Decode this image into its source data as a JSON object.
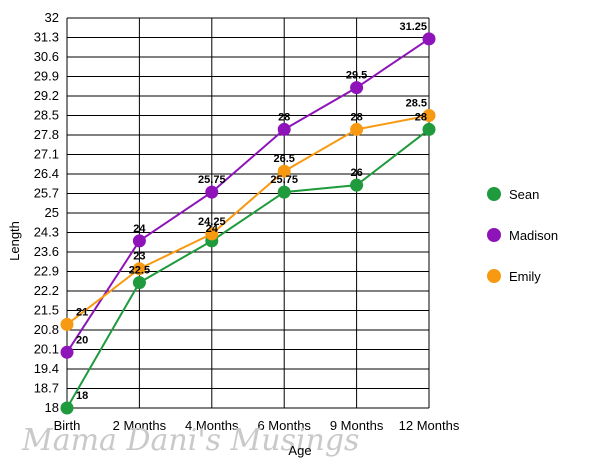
{
  "chart_data": {
    "type": "line",
    "title": "",
    "xlabel": "Age",
    "ylabel": "Length",
    "categories": [
      "Birth",
      "2 Months",
      "4 Months",
      "6 Months",
      "9 Months",
      "12 Months"
    ],
    "y_ticks": [
      "18",
      "18.7",
      "19.4",
      "20.1",
      "20.8",
      "21.5",
      "22.2",
      "22.9",
      "23.6",
      "24.3",
      "25",
      "25.7",
      "26.4",
      "27.1",
      "27.8",
      "28.5",
      "29.2",
      "29.9",
      "30.6",
      "31.3",
      "32"
    ],
    "ylim": [
      18,
      32
    ],
    "grid": true,
    "legend_position": "right",
    "series": [
      {
        "name": "Sean",
        "color": "#1f9a3c",
        "values": [
          18,
          22.5,
          24,
          25.75,
          26,
          28
        ],
        "labels": [
          "18",
          "22.5",
          "24",
          "25.75",
          "26",
          "28"
        ]
      },
      {
        "name": "Madison",
        "color": "#8e13b8",
        "values": [
          20,
          24,
          25.75,
          28,
          29.5,
          31.25
        ],
        "labels": [
          "20",
          "24",
          "25.75",
          "28",
          "29.5",
          "31.25"
        ]
      },
      {
        "name": "Emily",
        "color": "#f79a12",
        "values": [
          21,
          23,
          24.25,
          26.5,
          28,
          28.5
        ],
        "labels": [
          "21",
          "23",
          "24.25",
          "26.5",
          "28",
          "28.5"
        ]
      }
    ]
  },
  "watermark": "Mama Dani's Musings"
}
